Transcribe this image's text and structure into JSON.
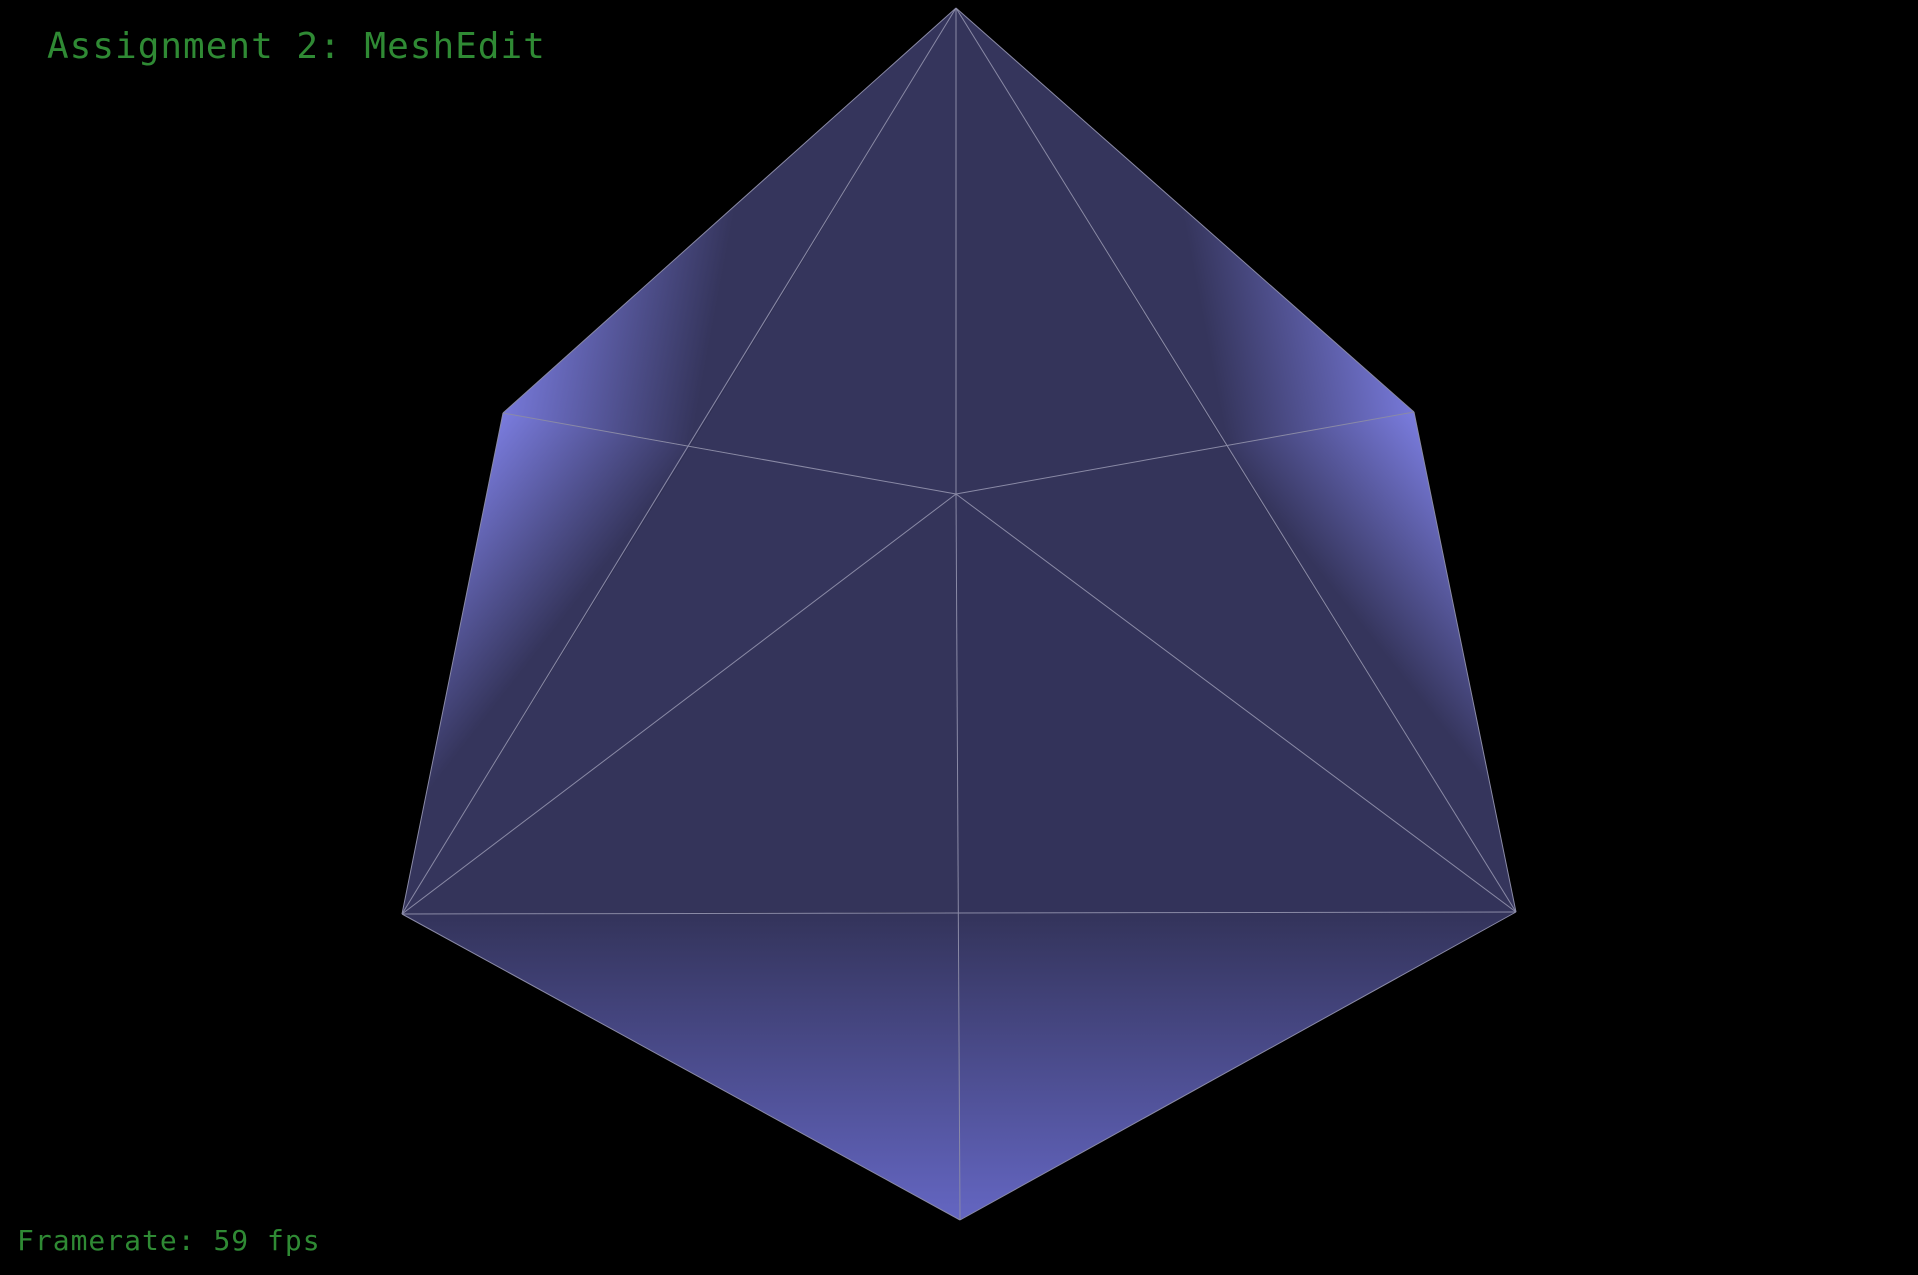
{
  "app": {
    "title": "Assignment 2: MeshEdit"
  },
  "hud": {
    "framerate_label": "Framerate:",
    "framerate_value": "59",
    "framerate_unit": "fps"
  },
  "colors": {
    "background": "#000000",
    "hud_text": "#2f8a34",
    "face_dark": "#34345a",
    "face_light": "#7476d6",
    "wireframe": "#8a8aa6"
  }
}
